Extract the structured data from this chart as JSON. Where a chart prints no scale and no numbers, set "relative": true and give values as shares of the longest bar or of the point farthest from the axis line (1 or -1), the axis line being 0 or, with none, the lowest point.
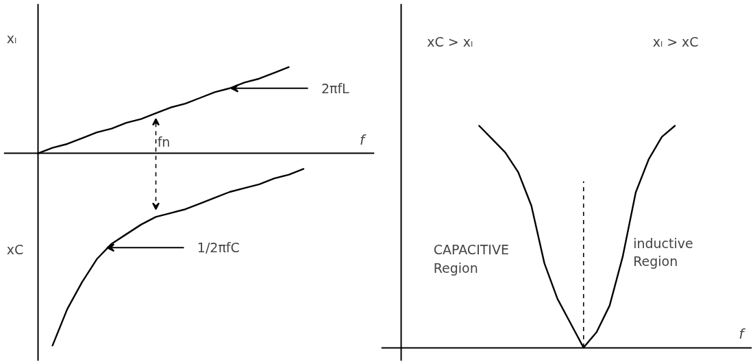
{
  "chart_data": [
    {
      "type": "line",
      "relative": true,
      "xlabel": "f",
      "grid": false,
      "line_style": "solid",
      "marker": "none",
      "categories": [
        null,
        null,
        null,
        null,
        null,
        null,
        null,
        null,
        null,
        null,
        null,
        null,
        null,
        null,
        null,
        null,
        null,
        null,
        null,
        null
      ],
      "series": [
        {
          "color": "#000000",
          "values": [
            0,
            0.03,
            0.05,
            0.08,
            0.11,
            0.13,
            0.16,
            0.18,
            0.21,
            0.24,
            0.26,
            0.29,
            0.32,
            0.34,
            0.37,
            0.39,
            0.42,
            0.45,
            null,
            null
          ]
        },
        {
          "color": "#000000",
          "values": [
            null,
            -1.0,
            -0.81,
            -0.67,
            -0.55,
            -0.47,
            -0.42,
            -0.37,
            -0.33,
            -0.31,
            -0.29,
            -0.26,
            -0.23,
            -0.2,
            -0.18,
            -0.16,
            -0.13,
            -0.11,
            -0.08,
            null
          ]
        }
      ],
      "annotations": [
        "xₗ",
        "xC",
        "2πfL",
        "1/2πfC",
        "fn"
      ]
    },
    {
      "type": "line",
      "relative": true,
      "xlabel": "f",
      "grid": false,
      "line_style": "solid",
      "marker": "none",
      "categories": [
        null,
        null,
        null,
        null,
        null,
        null,
        null,
        null,
        null,
        null,
        null,
        null,
        null,
        null,
        null,
        null,
        null,
        null,
        null,
        null,
        null,
        null,
        null,
        null,
        null,
        null,
        null
      ],
      "series": [
        {
          "color": "#000000",
          "values": [
            null,
            null,
            null,
            null,
            null,
            null,
            1.0,
            0.94,
            0.88,
            0.79,
            0.64,
            0.38,
            0.22,
            0.11,
            0,
            0.07,
            0.19,
            0.41,
            0.7,
            0.85,
            0.95,
            1.0,
            null,
            null,
            null,
            null,
            null
          ]
        }
      ],
      "annotations": [
        "xC > xₗ",
        "xₗ > xC",
        "CAPACITIVE\nRegion",
        "inductive\nRegion"
      ]
    }
  ]
}
